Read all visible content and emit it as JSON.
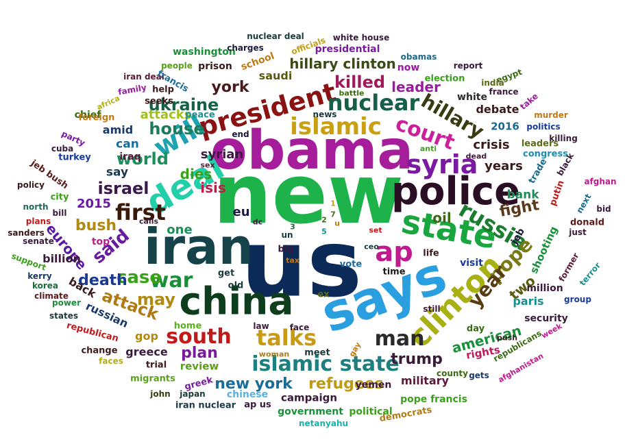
{
  "word_cloud": {
    "words": [
      {
        "text": "new",
        "color": "#1db24a"
      },
      {
        "text": "us",
        "color": "#0b2a57"
      },
      {
        "text": "obama",
        "color": "#a51d9a"
      },
      {
        "text": "says",
        "color": "#2a9fe0"
      },
      {
        "text": "iran",
        "color": "#16424a"
      },
      {
        "text": "china",
        "color": "#0d3d1c"
      },
      {
        "text": "police",
        "color": "#2a0e23"
      },
      {
        "text": "state",
        "color": "#1aa63f"
      },
      {
        "text": "deal",
        "color": "#22cfa8"
      },
      {
        "text": "president",
        "color": "#8a1212"
      },
      {
        "text": "clinton",
        "color": "#a8b012"
      },
      {
        "text": "talks",
        "color": "#c99a12"
      },
      {
        "text": "islamic state",
        "color": "#1d7f7f"
      },
      {
        "text": "russia",
        "color": "#1a7c2e"
      },
      {
        "text": "syria",
        "color": "#7a1aa0"
      },
      {
        "text": "islamic",
        "color": "#c9a012"
      },
      {
        "text": "ap",
        "color": "#c01a8f"
      },
      {
        "text": "will",
        "color": "#1fa3b0"
      },
      {
        "text": "south",
        "color": "#c01a1a"
      },
      {
        "text": "court",
        "color": "#cc1f9b"
      },
      {
        "text": "nuclear",
        "color": "#16604a"
      },
      {
        "text": "first",
        "color": "#3a1a0a"
      },
      {
        "text": "man",
        "color": "#2a2a2a"
      },
      {
        "text": "pope",
        "color": "#7a7a12"
      },
      {
        "text": "war",
        "color": "#1a8f3a"
      },
      {
        "text": "year",
        "color": "#5a3a12"
      },
      {
        "text": "hillary",
        "color": "#3a3a12"
      },
      {
        "text": "ukraine",
        "color": "#16604a"
      },
      {
        "text": "house",
        "color": "#1a7c5a"
      },
      {
        "text": "killed",
        "color": "#a01a5a"
      },
      {
        "text": "new york",
        "color": "#1a6c9a"
      },
      {
        "text": "refugees",
        "color": "#c09a12"
      },
      {
        "text": "attack",
        "color": "#b07a12"
      },
      {
        "text": "case",
        "color": "#3aa01a"
      },
      {
        "text": "may",
        "color": "#b08a12"
      },
      {
        "text": "said",
        "color": "#6a1aa0"
      },
      {
        "text": "world",
        "color": "#1a8f5a"
      },
      {
        "text": "israel",
        "color": "#3a1a4a"
      },
      {
        "text": "fight",
        "color": "#5a3a1a"
      },
      {
        "text": "death",
        "color": "#1a3a8f"
      },
      {
        "text": "american",
        "color": "#1a8f3a"
      },
      {
        "text": "york",
        "color": "#4a1a1a"
      },
      {
        "text": "trump",
        "color": "#3a1a3a"
      },
      {
        "text": "plan",
        "color": "#7a1a9a"
      },
      {
        "text": "bush",
        "color": "#b08a12"
      },
      {
        "text": "hillary clinton",
        "color": "#3a4a12"
      },
      {
        "text": "europe",
        "color": "#5a1aa0"
      },
      {
        "text": "leader",
        "color": "#9a1aa0"
      },
      {
        "text": "isis",
        "color": "#c01a4a"
      },
      {
        "text": "dies",
        "color": "#3aa01a"
      },
      {
        "text": "two",
        "color": "#5a5a12"
      },
      {
        "text": "oil",
        "color": "#3a6a12"
      },
      {
        "text": "syrian",
        "color": "#3a1a3a"
      },
      {
        "text": "eu",
        "color": "#1a1a4a"
      },
      {
        "text": "one",
        "color": "#1a8f5a"
      },
      {
        "text": "years",
        "color": "#3a1a1a"
      },
      {
        "text": "crisis",
        "color": "#3a1a1a"
      },
      {
        "text": "debate",
        "color": "#3a1a1a"
      },
      {
        "text": "attacks",
        "color": "#a0c01a"
      },
      {
        "text": "russian",
        "color": "#1a3a6a"
      },
      {
        "text": "military",
        "color": "#5a1a3a"
      },
      {
        "text": "2015",
        "color": "#6a1aa0"
      },
      {
        "text": "bank",
        "color": "#1a8f5a"
      },
      {
        "text": "can",
        "color": "#1a6a9a"
      },
      {
        "text": "say",
        "color": "#1a3a4a"
      },
      {
        "text": "billion",
        "color": "#3a1a3a"
      },
      {
        "text": "paris",
        "color": "#1a8f8f"
      },
      {
        "text": "back",
        "color": "#3a1a1a"
      },
      {
        "text": "saudi",
        "color": "#5a5a12"
      },
      {
        "text": "amid",
        "color": "#1a3a6a"
      },
      {
        "text": "gop",
        "color": "#b08a12"
      },
      {
        "text": "greece",
        "color": "#3a1a3a"
      },
      {
        "text": "campaign",
        "color": "#3a1a3a"
      },
      {
        "text": "rights",
        "color": "#c01a5a"
      },
      {
        "text": "shooting",
        "color": "#1a8f3a"
      },
      {
        "text": "jeb",
        "color": "#1a1a3a"
      },
      {
        "text": "million",
        "color": "#3a1a3a"
      },
      {
        "text": "visit",
        "color": "#1a3a9a"
      },
      {
        "text": "white",
        "color": "#2a2a2a"
      },
      {
        "text": "review",
        "color": "#5aa01a"
      },
      {
        "text": "2016",
        "color": "#1a6a8f"
      },
      {
        "text": "top",
        "color": "#c01a8f"
      },
      {
        "text": "iraq",
        "color": "#5a1a3a"
      },
      {
        "text": "chief",
        "color": "#3a6a12"
      },
      {
        "text": "now",
        "color": "#9a1aa0"
      },
      {
        "text": "school",
        "color": "#c07a12"
      },
      {
        "text": "prison",
        "color": "#3a1a1a"
      },
      {
        "text": "presidential",
        "color": "#7a1aa0"
      },
      {
        "text": "washington",
        "color": "#1a8f3a"
      },
      {
        "text": "security",
        "color": "#3a1a3a"
      },
      {
        "text": "yemen",
        "color": "#3a1a3a"
      },
      {
        "text": "pope francis",
        "color": "#3aa01a"
      },
      {
        "text": "government",
        "color": "#1a8f3a"
      },
      {
        "text": "political",
        "color": "#3aa01a"
      },
      {
        "text": "democrats",
        "color": "#b07a12"
      },
      {
        "text": "chinese",
        "color": "#5ab0e0"
      },
      {
        "text": "netanyahu",
        "color": "#1ab0b0"
      },
      {
        "text": "ap us",
        "color": "#3a1a3a"
      },
      {
        "text": "iran nuclear",
        "color": "#1a3a4a"
      },
      {
        "text": "japan",
        "color": "#1a3a3a"
      },
      {
        "text": "greek",
        "color": "#7a1aa0"
      },
      {
        "text": "john",
        "color": "#3a3a12"
      },
      {
        "text": "migrants",
        "color": "#5aa01a"
      },
      {
        "text": "trial",
        "color": "#3a1a1a"
      },
      {
        "text": "faces",
        "color": "#b0b012"
      },
      {
        "text": "change",
        "color": "#3a1a1a"
      },
      {
        "text": "republican",
        "color": "#c01a1a"
      },
      {
        "text": "home",
        "color": "#5ab01a"
      },
      {
        "text": "states",
        "color": "#1a3a3a"
      },
      {
        "text": "power",
        "color": "#1a8f3a"
      },
      {
        "text": "climate",
        "color": "#5a1a1a"
      },
      {
        "text": "korea",
        "color": "#1a6a3a"
      },
      {
        "text": "kerry",
        "color": "#1a3a6a"
      },
      {
        "text": "support",
        "color": "#3aa01a"
      },
      {
        "text": "senate",
        "color": "#3a1a3a"
      },
      {
        "text": "sanders",
        "color": "#3a1a1a"
      },
      {
        "text": "plans",
        "color": "#c01a1a"
      },
      {
        "text": "north",
        "color": "#1a6a5a"
      },
      {
        "text": "bill",
        "color": "#3a1a3a"
      },
      {
        "text": "city",
        "color": "#3aa01a"
      },
      {
        "text": "policy",
        "color": "#3a1a1a"
      },
      {
        "text": "jeb bush",
        "color": "#5a1a1a"
      },
      {
        "text": "cuba",
        "color": "#3a1a3a"
      },
      {
        "text": "turkey",
        "color": "#1a3a9a"
      },
      {
        "text": "party",
        "color": "#7a1aa0"
      },
      {
        "text": "foreign",
        "color": "#c07a12"
      },
      {
        "text": "africa",
        "color": "#b0b012"
      },
      {
        "text": "family",
        "color": "#9a1aa0"
      },
      {
        "text": "iran deal",
        "color": "#5a1a3a"
      },
      {
        "text": "people",
        "color": "#5aa01a"
      },
      {
        "text": "officials",
        "color": "#c0a012"
      },
      {
        "text": "charges",
        "color": "#1a1a3a"
      },
      {
        "text": "nuclear deal",
        "color": "#1a3a3a"
      },
      {
        "text": "white house",
        "color": "#3a1a3a"
      },
      {
        "text": "obamas",
        "color": "#1a6a8f"
      },
      {
        "text": "report",
        "color": "#3a1a3a"
      },
      {
        "text": "egypt",
        "color": "#3a6a12"
      },
      {
        "text": "india",
        "color": "#5a6a12"
      },
      {
        "text": "france",
        "color": "#3a1a3a"
      },
      {
        "text": "take",
        "color": "#9a1aa0"
      },
      {
        "text": "murder",
        "color": "#c07a12"
      },
      {
        "text": "politics",
        "color": "#1a3a9a"
      },
      {
        "text": "killing",
        "color": "#3a1a3a"
      },
      {
        "text": "leaders",
        "color": "#5a6a12"
      },
      {
        "text": "congress",
        "color": "#1a8fb0"
      },
      {
        "text": "trade",
        "color": "#1a6a8f"
      },
      {
        "text": "black",
        "color": "#3a1a3a"
      },
      {
        "text": "afghan",
        "color": "#c01a8f"
      },
      {
        "text": "putin",
        "color": "#c01a1a"
      },
      {
        "text": "next",
        "color": "#1a6a8f"
      },
      {
        "text": "bid",
        "color": "#3a1a3a"
      },
      {
        "text": "donald",
        "color": "#5a1a1a"
      },
      {
        "text": "former",
        "color": "#5a1a3a"
      },
      {
        "text": "terror",
        "color": "#1a8f8f"
      },
      {
        "text": "group",
        "color": "#1a3a9a"
      },
      {
        "text": "week",
        "color": "#c01a8f"
      },
      {
        "text": "afghanistan",
        "color": "#c01a8f"
      },
      {
        "text": "republicans",
        "color": "#3a6a12"
      },
      {
        "text": "push",
        "color": "#3a1a1a"
      },
      {
        "text": "gets",
        "color": "#1a3a6a"
      },
      {
        "text": "county",
        "color": "#3a6a12"
      },
      {
        "text": "still",
        "color": "#3a1a3a"
      },
      {
        "text": "day",
        "color": "#3a6a12"
      },
      {
        "text": "life",
        "color": "#3a1a1a"
      },
      {
        "text": "time",
        "color": "#1a1a1a"
      },
      {
        "text": "vote",
        "color": "#1a6a9a"
      },
      {
        "text": "tax",
        "color": "#c07a12"
      },
      {
        "text": "ceo",
        "color": "#1a3a3a"
      },
      {
        "text": "set",
        "color": "#c01a1a"
      },
      {
        "text": "big",
        "color": "#3a1a3a"
      },
      {
        "text": "un",
        "color": "#1a3a3a"
      },
      {
        "text": "dc",
        "color": "#3a1a3a"
      },
      {
        "text": "get",
        "color": "#1a3a3a"
      },
      {
        "text": "old",
        "color": "#1a3a3a"
      },
      {
        "text": "ex",
        "color": "#5a6a12"
      },
      {
        "text": "law",
        "color": "#3a1a3a"
      },
      {
        "text": "face",
        "color": "#3a1a3a"
      },
      {
        "text": "woman",
        "color": "#b07a12"
      },
      {
        "text": "meet",
        "color": "#1a3a3a"
      },
      {
        "text": "gay",
        "color": "#c07a12"
      },
      {
        "text": "calls",
        "color": "#3a1a3a"
      },
      {
        "text": "sex",
        "color": "#5a1a3a"
      },
      {
        "text": "end",
        "color": "#1a1a3a"
      },
      {
        "text": "news",
        "color": "#1a3a3a"
      },
      {
        "text": "battle",
        "color": "#3a6a12"
      },
      {
        "text": "anti",
        "color": "#3aa01a"
      },
      {
        "text": "dead",
        "color": "#3a1a3a"
      },
      {
        "text": "help",
        "color": "#3a1a1a"
      },
      {
        "text": "seeks",
        "color": "#3a1a1a"
      },
      {
        "text": "peace",
        "color": "#1a8f8f"
      },
      {
        "text": "francis",
        "color": "#1a6a9a"
      },
      {
        "text": "election",
        "color": "#3aa01a"
      },
      {
        "text": "just",
        "color": "#3a1a3a"
      },
      {
        "text": "3",
        "color": "#1a6a3a"
      },
      {
        "text": "5",
        "color": "#1a8f8f"
      },
      {
        "text": "2",
        "color": "#3a6a12"
      },
      {
        "text": "1",
        "color": "#c0a012"
      },
      {
        "text": "7",
        "color": "#5a6a12"
      },
      {
        "text": "u",
        "color": "#c07a12"
      }
    ]
  }
}
